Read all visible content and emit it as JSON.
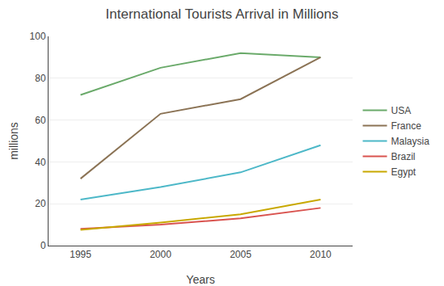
{
  "chart_data": {
    "type": "line",
    "title": "International Tourists Arrival in Millions",
    "xlabel": "Years",
    "ylabel": "millions",
    "x": [
      1995,
      2000,
      2005,
      2010
    ],
    "series": [
      {
        "name": "USA",
        "color": "#6aaa6a",
        "values": [
          72,
          85,
          92,
          90
        ]
      },
      {
        "name": "France",
        "color": "#8b7355",
        "values": [
          32,
          63,
          70,
          90
        ]
      },
      {
        "name": "Malaysia",
        "color": "#4db8c8",
        "values": [
          22,
          28,
          35,
          48
        ]
      },
      {
        "name": "Brazil",
        "color": "#d9534f",
        "values": [
          8,
          10,
          13,
          18
        ]
      },
      {
        "name": "Egypt",
        "color": "#c8a800",
        "values": [
          7.5,
          11,
          15,
          22
        ]
      }
    ],
    "xlim": [
      1993,
      2012
    ],
    "xticks": [
      1995,
      2000,
      2005,
      2010
    ],
    "ylim": [
      0,
      100
    ],
    "yticks": [
      0,
      20,
      40,
      60,
      80,
      100
    ],
    "grid": true,
    "legend": "right"
  }
}
